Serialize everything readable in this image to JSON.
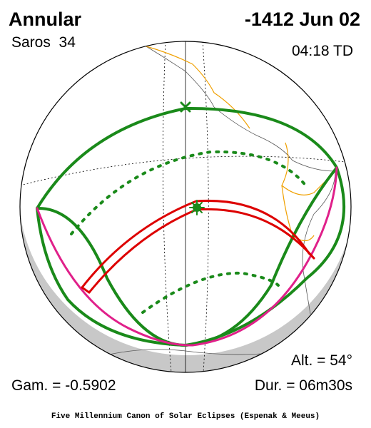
{
  "header": {
    "type": "Annular",
    "saros": "Saros  34",
    "date": "-1412 Jun 02",
    "time": "04:18 TD"
  },
  "parameters": {
    "altitude": "Alt. = 54°",
    "gamma": "Gam. = -0.5902",
    "duration": "Dur. = 06m30s"
  },
  "footer": "Five Millennium Canon of Solar Eclipses (Espenak & Meeus)"
}
